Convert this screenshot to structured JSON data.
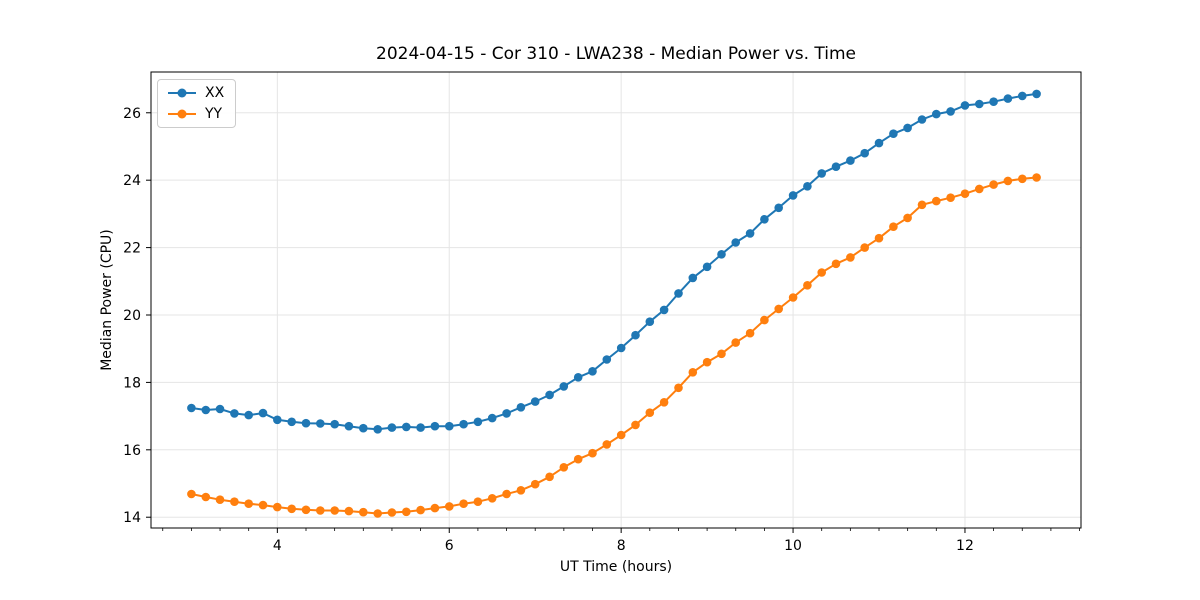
{
  "chart_data": {
    "type": "line",
    "title": "2024-04-15 - Cor 310 - LWA238 - Median Power vs. Time",
    "xlabel": "UT Time (hours)",
    "ylabel": "Median Power (CPU)",
    "xlim": [
      2.53,
      13.35
    ],
    "ylim": [
      13.68,
      27.21
    ],
    "xticks": [
      4,
      6,
      8,
      10,
      12
    ],
    "yticks": [
      14,
      16,
      18,
      20,
      22,
      24,
      26
    ],
    "x_minor_step": 0.33333,
    "grid": true,
    "grid_color": "#e5e5e5",
    "spine_color": "#000000",
    "legend_position": "upper-left",
    "x": [
      3.0,
      3.167,
      3.333,
      3.5,
      3.667,
      3.833,
      4.0,
      4.167,
      4.333,
      4.5,
      4.667,
      4.833,
      5.0,
      5.167,
      5.333,
      5.5,
      5.667,
      5.833,
      6.0,
      6.167,
      6.333,
      6.5,
      6.667,
      6.833,
      7.0,
      7.167,
      7.333,
      7.5,
      7.667,
      7.833,
      8.0,
      8.167,
      8.333,
      8.5,
      8.667,
      8.833,
      9.0,
      9.167,
      9.333,
      9.5,
      9.667,
      9.833,
      10.0,
      10.167,
      10.333,
      10.5,
      10.667,
      10.833,
      11.0,
      11.167,
      11.333,
      11.5,
      11.667,
      11.833,
      12.0,
      12.167,
      12.333,
      12.5,
      12.667,
      12.833
    ],
    "series": [
      {
        "name": "XX",
        "color": "#1f77b4",
        "values": [
          17.24,
          17.18,
          17.21,
          17.08,
          17.03,
          17.09,
          16.89,
          16.83,
          16.79,
          16.78,
          16.76,
          16.7,
          16.64,
          16.61,
          16.66,
          16.68,
          16.66,
          16.7,
          16.7,
          16.76,
          16.83,
          16.94,
          17.08,
          17.26,
          17.43,
          17.63,
          17.88,
          18.15,
          18.33,
          18.68,
          19.02,
          19.4,
          19.8,
          20.15,
          20.64,
          21.1,
          21.43,
          21.8,
          22.15,
          22.42,
          22.84,
          23.18,
          23.55,
          23.82,
          24.2,
          24.4,
          24.58,
          24.8,
          25.1,
          25.38,
          25.55,
          25.8,
          25.96,
          26.04,
          26.22,
          26.26,
          26.33,
          26.42,
          26.5,
          26.56
        ]
      },
      {
        "name": "YY",
        "color": "#ff7f0e",
        "values": [
          14.69,
          14.6,
          14.52,
          14.46,
          14.4,
          14.36,
          14.3,
          14.25,
          14.22,
          14.2,
          14.2,
          14.18,
          14.15,
          14.11,
          14.14,
          14.16,
          14.21,
          14.27,
          14.32,
          14.4,
          14.46,
          14.56,
          14.69,
          14.8,
          14.98,
          15.2,
          15.48,
          15.72,
          15.9,
          16.16,
          16.44,
          16.74,
          17.1,
          17.41,
          17.84,
          18.3,
          18.6,
          18.85,
          19.18,
          19.46,
          19.85,
          20.18,
          20.52,
          20.88,
          21.26,
          21.52,
          21.71,
          22.0,
          22.28,
          22.62,
          22.88,
          23.27,
          23.38,
          23.48,
          23.6,
          23.74,
          23.87,
          23.98,
          24.04,
          24.08
        ]
      }
    ]
  }
}
